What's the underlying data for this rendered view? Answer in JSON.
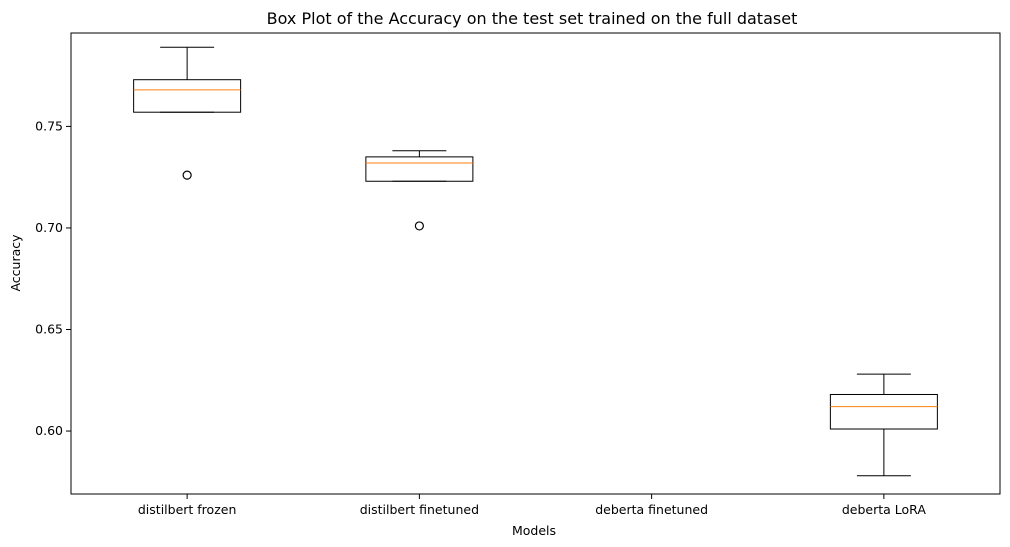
{
  "chart_data": {
    "type": "box",
    "title": "Box Plot of the Accuracy on the test set trained on the full dataset",
    "xlabel": "Models",
    "ylabel": "Accuracy",
    "ylim": [
      0.569,
      0.796
    ],
    "yticks": [
      0.6,
      0.65,
      0.7,
      0.75
    ],
    "ytick_labels": [
      "0.60",
      "0.65",
      "0.70",
      "0.75"
    ],
    "categories": [
      "distilbert frozen",
      "distilbert finetuned",
      "deberta finetuned",
      "deberta LoRA"
    ],
    "boxes": [
      {
        "label": "distilbert frozen",
        "whisker_low": 0.757,
        "q1": 0.757,
        "median": 0.768,
        "q3": 0.773,
        "whisker_high": 0.789,
        "outliers": [
          0.726
        ]
      },
      {
        "label": "distilbert finetuned",
        "whisker_low": 0.723,
        "q1": 0.723,
        "median": 0.732,
        "q3": 0.735,
        "whisker_high": 0.738,
        "outliers": [
          0.701
        ]
      },
      {
        "label": "deberta finetuned",
        "whisker_low": null,
        "q1": null,
        "median": null,
        "q3": null,
        "whisker_high": null,
        "outliers": []
      },
      {
        "label": "deberta LoRA",
        "whisker_low": 0.578,
        "q1": 0.601,
        "median": 0.612,
        "q3": 0.618,
        "whisker_high": 0.628,
        "outliers": []
      }
    ],
    "grid": false,
    "colors": {
      "box": "#000000",
      "median": "#ff7f0e",
      "axes": "#000000"
    }
  }
}
